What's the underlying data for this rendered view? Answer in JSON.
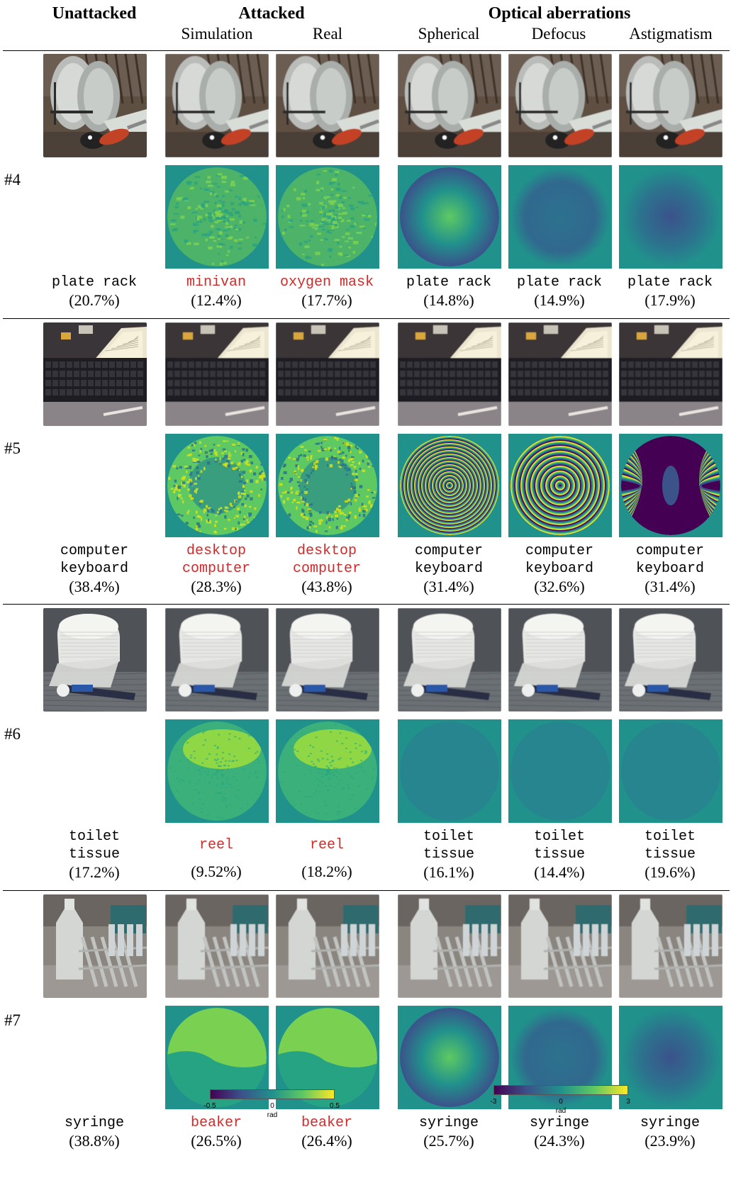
{
  "header": {
    "unattacked": "Unattacked",
    "attacked": "Attacked",
    "optical": "Optical aberrations",
    "simulation": "Simulation",
    "real": "Real",
    "spherical": "Spherical",
    "defocus": "Defocus",
    "astigmatism": "Astigmatism"
  },
  "rows": [
    {
      "id": "#4",
      "scene": "plate-rack",
      "attack_phase": "swirl",
      "aberration_phase": "smooth",
      "labels": [
        {
          "lines": [
            "plate rack"
          ],
          "pct": "(20.7%)",
          "attacked": false
        },
        {
          "lines": [
            "minivan"
          ],
          "pct": "(12.4%)",
          "attacked": true
        },
        {
          "lines": [
            "oxygen mask"
          ],
          "pct": "(17.7%)",
          "attacked": true
        },
        {
          "lines": [
            "plate rack"
          ],
          "pct": "(14.8%)",
          "attacked": false
        },
        {
          "lines": [
            "plate rack"
          ],
          "pct": "(14.9%)",
          "attacked": false
        },
        {
          "lines": [
            "plate rack"
          ],
          "pct": "(17.9%)",
          "attacked": false
        }
      ]
    },
    {
      "id": "#5",
      "scene": "keyboard",
      "attack_phase": "ring-noise",
      "aberration_phase": "fringes",
      "labels": [
        {
          "lines": [
            "computer",
            "keyboard"
          ],
          "pct": "(38.4%)",
          "attacked": false
        },
        {
          "lines": [
            "desktop",
            "computer"
          ],
          "pct": "(28.3%)",
          "attacked": true
        },
        {
          "lines": [
            "desktop",
            "computer"
          ],
          "pct": "(43.8%)",
          "attacked": true
        },
        {
          "lines": [
            "computer",
            "keyboard"
          ],
          "pct": "(31.4%)",
          "attacked": false
        },
        {
          "lines": [
            "computer",
            "keyboard"
          ],
          "pct": "(32.6%)",
          "attacked": false
        },
        {
          "lines": [
            "computer",
            "keyboard"
          ],
          "pct": "(31.4%)",
          "attacked": false
        }
      ]
    },
    {
      "id": "#6",
      "scene": "toilet-tissue",
      "attack_phase": "upper-bright",
      "aberration_phase": "flat",
      "labels": [
        {
          "lines": [
            "toilet",
            "tissue"
          ],
          "pct": "(17.2%)",
          "attacked": false
        },
        {
          "lines": [
            "reel"
          ],
          "pct": "(9.52%)",
          "attacked": true
        },
        {
          "lines": [
            "reel"
          ],
          "pct": "(18.2%)",
          "attacked": true
        },
        {
          "lines": [
            "toilet",
            "tissue"
          ],
          "pct": "(16.1%)",
          "attacked": false
        },
        {
          "lines": [
            "toilet",
            "tissue"
          ],
          "pct": "(14.4%)",
          "attacked": false
        },
        {
          "lines": [
            "toilet",
            "tissue"
          ],
          "pct": "(19.6%)",
          "attacked": false
        }
      ]
    },
    {
      "id": "#7",
      "scene": "syringe",
      "attack_phase": "upper-flat",
      "aberration_phase": "smooth",
      "labels": [
        {
          "lines": [
            "syringe"
          ],
          "pct": "(38.8%)",
          "attacked": false
        },
        {
          "lines": [
            "beaker"
          ],
          "pct": "(26.5%)",
          "attacked": true
        },
        {
          "lines": [
            "beaker"
          ],
          "pct": "(26.4%)",
          "attacked": true
        },
        {
          "lines": [
            "syringe"
          ],
          "pct": "(25.7%)",
          "attacked": false
        },
        {
          "lines": [
            "syringe"
          ],
          "pct": "(24.3%)",
          "attacked": false
        },
        {
          "lines": [
            "syringe"
          ],
          "pct": "(23.9%)",
          "attacked": false
        }
      ]
    }
  ],
  "colorbars": [
    {
      "ticks": [
        "-0.5",
        "0",
        "0.5"
      ],
      "unit": "rad"
    },
    {
      "ticks": [
        "-3",
        "0",
        "3"
      ],
      "unit": "rad"
    }
  ],
  "colors": {
    "attacked_label": "#d22a2a",
    "phase_background": "#21918c",
    "viridis": [
      "#440154",
      "#3b528b",
      "#21918c",
      "#5ec962",
      "#fde725"
    ]
  }
}
